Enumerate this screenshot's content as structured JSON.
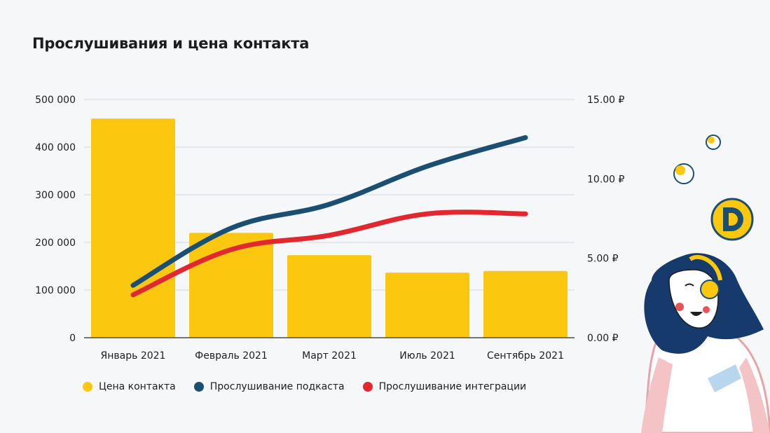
{
  "title": "Прослушивания и цена контакта",
  "colors": {
    "bar": "#fbc70f",
    "podcast": "#1b4f72",
    "integration": "#e0282e",
    "grid": "#dfe3e8",
    "axis": "#1d1d1f"
  },
  "chart_data": {
    "type": "bar",
    "categories": [
      "Январь 2021",
      "Февраль 2021",
      "Март 2021",
      "Июль 2021",
      "Сентябрь 2021"
    ],
    "y_left": {
      "range": [
        0,
        500000
      ],
      "ticks": [
        0,
        100000,
        200000,
        300000,
        400000,
        500000
      ],
      "tick_labels": [
        "0",
        "100 000",
        "200 000",
        "300 000",
        "400 000",
        "500 000"
      ]
    },
    "y_right": {
      "range": [
        0,
        15
      ],
      "ticks": [
        0,
        5,
        10,
        15
      ],
      "tick_labels": [
        "0.00 ₽",
        "5.00 ₽",
        "10.00 ₽",
        "15.00 ₽"
      ]
    },
    "grid": true,
    "legend_position": "bottom",
    "series": [
      {
        "name": "Цена контакта",
        "type": "bar",
        "axis": "right",
        "values": [
          13.8,
          6.6,
          5.2,
          4.1,
          4.2
        ]
      },
      {
        "name": "Прослушивание подкаста",
        "type": "line",
        "axis": "left",
        "values": [
          110000,
          230000,
          280000,
          360000,
          420000
        ]
      },
      {
        "name": "Прослушивание интеграции",
        "type": "line",
        "axis": "left",
        "values": [
          90000,
          185000,
          215000,
          260000,
          260000
        ]
      }
    ]
  }
}
